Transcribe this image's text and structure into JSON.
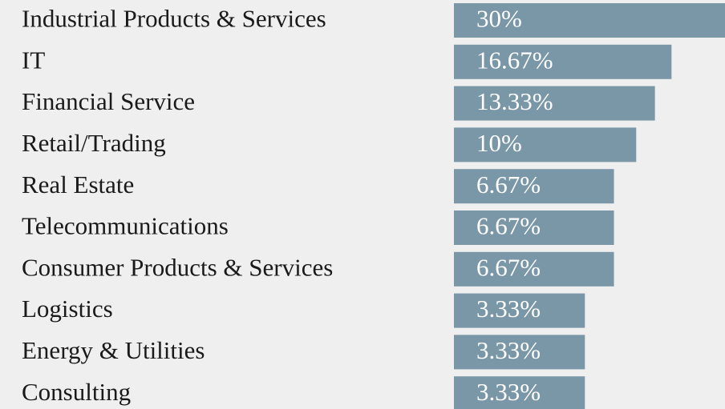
{
  "chart_data": {
    "type": "bar",
    "orientation": "horizontal",
    "categories": [
      "Industrial Products & Services",
      "IT",
      "Financial Service",
      "Retail/Trading",
      "Real Estate",
      "Telecommunications",
      "Consumer Products & Services",
      "Logistics",
      "Energy & Utilities",
      "Consulting"
    ],
    "values": [
      30,
      16.67,
      13.33,
      10,
      6.67,
      6.67,
      6.67,
      3.33,
      3.33,
      3.33
    ],
    "value_labels": [
      "30%",
      "16.67%",
      "13.33%",
      "10%",
      "6.67%",
      "6.67%",
      "6.67%",
      "3.33%",
      "3.33%",
      "3.33%"
    ],
    "color": "#7a97a8"
  }
}
